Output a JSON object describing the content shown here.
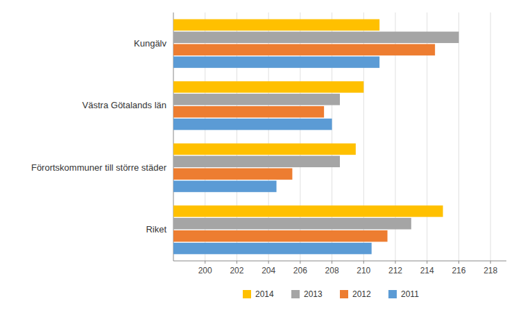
{
  "chart_data": {
    "type": "bar",
    "orientation": "horizontal",
    "categories": [
      "Kungälv",
      "Västra Götalands län",
      "Förortskommuner till större städer",
      "Riket"
    ],
    "series": [
      {
        "name": "2014",
        "color": "#FFC000",
        "values": [
          211.0,
          210.0,
          209.5,
          215.0
        ]
      },
      {
        "name": "2013",
        "color": "#A5A5A5",
        "values": [
          216.0,
          208.5,
          208.5,
          213.0
        ]
      },
      {
        "name": "2012",
        "color": "#ED7D31",
        "values": [
          214.5,
          207.5,
          205.5,
          211.5
        ]
      },
      {
        "name": "2011",
        "color": "#5B9BD5",
        "values": [
          211.0,
          208.0,
          204.5,
          210.5
        ]
      }
    ],
    "xlim": [
      198,
      219
    ],
    "xticks": [
      200,
      202,
      204,
      206,
      208,
      210,
      212,
      214,
      216,
      218
    ],
    "grid": true,
    "legend": "bottom"
  }
}
